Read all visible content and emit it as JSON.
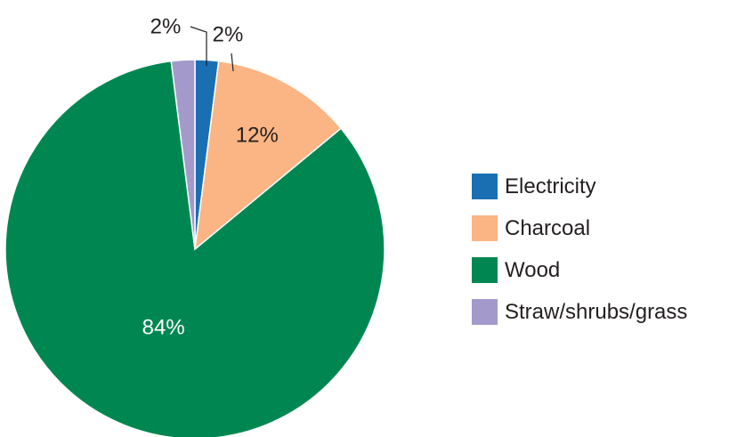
{
  "chart_data": {
    "type": "pie",
    "slices": [
      {
        "name": "Electricity",
        "value": 2,
        "label": "2%",
        "color": "#1a6fb3"
      },
      {
        "name": "Charcoal",
        "value": 12,
        "label": "12%",
        "color": "#fbb584"
      },
      {
        "name": "Wood",
        "value": 84,
        "label": "84%",
        "color": "#008751"
      },
      {
        "name": "Straw/shrubs/grass",
        "value": 2,
        "label": "2%",
        "color": "#a399cb"
      }
    ],
    "start_angle": "12 o'clock, clockwise",
    "legend": "right"
  }
}
